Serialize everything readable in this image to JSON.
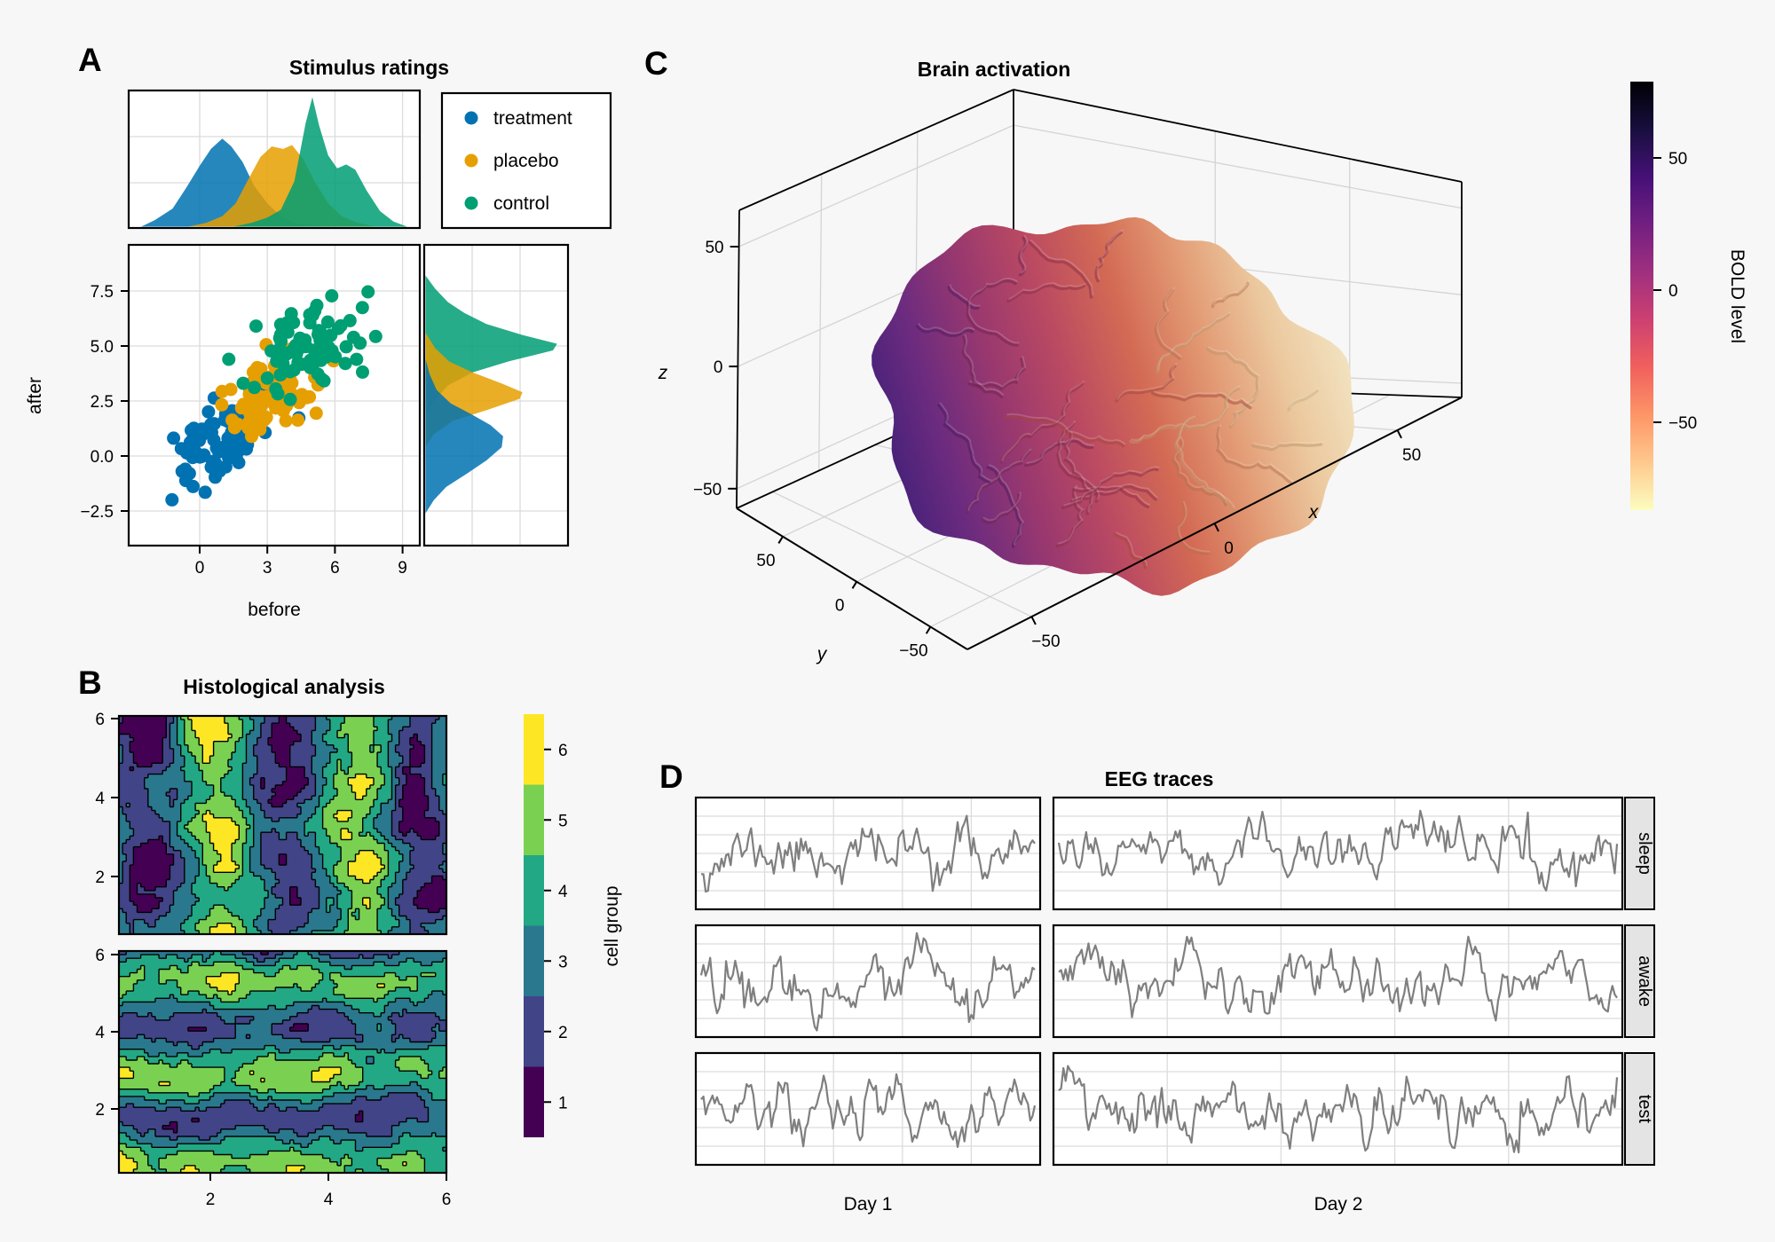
{
  "figure": {
    "background": "#F7F7F7",
    "panel_background": "#FFFFFF",
    "grid_color": "#DCDCDC",
    "wall_grid_color": "#D4D4D4",
    "border_color": "#000000"
  },
  "chart_data": [
    {
      "id": "A",
      "type": "scatter",
      "title": "Stimulus ratings",
      "xlabel": "before",
      "ylabel": "after",
      "x_ticks": [
        0,
        3,
        6,
        9
      ],
      "y_ticks": [
        7.5,
        5.0,
        2.5,
        0.0,
        -2.5
      ],
      "y_tick_labels": [
        "7.5",
        "5.0",
        "2.5",
        "0.0",
        "−2.5"
      ],
      "xlim": [
        -3.2,
        9.8
      ],
      "ylim": [
        -4.1,
        9.6
      ],
      "grid": true,
      "legend": {
        "position": "top-right box",
        "entries": [
          "treatment",
          "placebo",
          "control"
        ],
        "colors": [
          "#0072B2",
          "#E69F00",
          "#009E73"
        ]
      },
      "series": [
        {
          "name": "treatment",
          "color": "#0072B2",
          "n": 85,
          "mean": [
            1.0,
            0.7
          ],
          "sd": [
            1.05,
            0.95
          ],
          "corr": 0.35,
          "seed": 101
        },
        {
          "name": "placebo",
          "color": "#E69F00",
          "n": 85,
          "mean": [
            3.1,
            2.8
          ],
          "sd": [
            1.05,
            0.8
          ],
          "corr": 0.3,
          "seed": 202
        },
        {
          "name": "control",
          "color": "#009E73",
          "n": 85,
          "mean": [
            5.1,
            5.0
          ],
          "sd": [
            1.15,
            0.95
          ],
          "corr": 0.3,
          "seed": 303
        }
      ],
      "marginal_top": {
        "treatment": [
          [
            -2.6,
            0
          ],
          [
            -2,
            0.05
          ],
          [
            -1.2,
            0.14
          ],
          [
            -0.6,
            0.3
          ],
          [
            0,
            0.47
          ],
          [
            0.5,
            0.6
          ],
          [
            1,
            0.68
          ],
          [
            1.4,
            0.62
          ],
          [
            1.9,
            0.5
          ],
          [
            2.4,
            0.32
          ],
          [
            3,
            0.18
          ],
          [
            3.6,
            0.08
          ],
          [
            4.2,
            0.03
          ],
          [
            5,
            0.01
          ],
          [
            6,
            0
          ]
        ],
        "placebo": [
          [
            -0.5,
            0
          ],
          [
            0.3,
            0.03
          ],
          [
            1,
            0.08
          ],
          [
            1.6,
            0.18
          ],
          [
            2.2,
            0.38
          ],
          [
            2.7,
            0.54
          ],
          [
            3.2,
            0.62
          ],
          [
            3.7,
            0.6
          ],
          [
            4.1,
            0.63
          ],
          [
            4.6,
            0.52
          ],
          [
            5.1,
            0.35
          ],
          [
            5.7,
            0.18
          ],
          [
            6.3,
            0.08
          ],
          [
            7,
            0.03
          ],
          [
            7.8,
            0
          ]
        ],
        "control": [
          [
            1.5,
            0
          ],
          [
            2.3,
            0.03
          ],
          [
            3,
            0.07
          ],
          [
            3.6,
            0.13
          ],
          [
            4.2,
            0.35
          ],
          [
            4.7,
            0.8
          ],
          [
            5,
            1
          ],
          [
            5.3,
            0.78
          ],
          [
            5.7,
            0.55
          ],
          [
            6.1,
            0.45
          ],
          [
            6.5,
            0.48
          ],
          [
            6.9,
            0.44
          ],
          [
            7.4,
            0.28
          ],
          [
            8,
            0.12
          ],
          [
            8.6,
            0.04
          ],
          [
            9.2,
            0
          ]
        ]
      },
      "marginal_right": {
        "control": [
          [
            1.8,
            0
          ],
          [
            2.5,
            0.06
          ],
          [
            3.2,
            0.16
          ],
          [
            3.8,
            0.34
          ],
          [
            4.3,
            0.6
          ],
          [
            4.8,
            0.92
          ],
          [
            5.1,
            0.95
          ],
          [
            5.5,
            0.7
          ],
          [
            6,
            0.44
          ],
          [
            6.5,
            0.28
          ],
          [
            7,
            0.16
          ],
          [
            7.6,
            0.07
          ],
          [
            8.2,
            0
          ]
        ],
        "placebo": [
          [
            0.4,
            0
          ],
          [
            1,
            0.06
          ],
          [
            1.6,
            0.2
          ],
          [
            2.1,
            0.45
          ],
          [
            2.6,
            0.68
          ],
          [
            2.9,
            0.7
          ],
          [
            3.3,
            0.55
          ],
          [
            3.8,
            0.34
          ],
          [
            4.3,
            0.17
          ],
          [
            4.9,
            0.07
          ],
          [
            5.6,
            0
          ]
        ],
        "treatment": [
          [
            -2.6,
            0
          ],
          [
            -2,
            0.06
          ],
          [
            -1.4,
            0.15
          ],
          [
            -0.8,
            0.3
          ],
          [
            -0.2,
            0.44
          ],
          [
            0.4,
            0.55
          ],
          [
            0.9,
            0.56
          ],
          [
            1.4,
            0.47
          ],
          [
            1.9,
            0.33
          ],
          [
            2.4,
            0.18
          ],
          [
            3,
            0.08
          ],
          [
            3.7,
            0.03
          ],
          [
            4.4,
            0
          ]
        ]
      },
      "density_opacity": 0.85
    },
    {
      "id": "B",
      "type": "filled_contour",
      "title": "Histological analysis",
      "facets": [
        "top",
        "bottom"
      ],
      "x_ticks": [
        2,
        4,
        6
      ],
      "y_ticks": [
        6,
        4,
        2
      ],
      "levels": [
        1,
        2,
        3,
        4,
        5,
        6
      ],
      "palette": [
        "#440154",
        "#414487",
        "#2A788E",
        "#22A884",
        "#7AD151",
        "#FDE725"
      ],
      "colorbar": {
        "label": "cell group",
        "ticks": [
          1,
          2,
          3,
          4,
          5,
          6
        ]
      },
      "pattern": {
        "top": "vertical bands",
        "bottom": "horizontal bands fading to the right"
      },
      "seeds": {
        "top": 7,
        "bottom": 99
      }
    },
    {
      "id": "C",
      "type": "surface3d",
      "title": "Brain activation",
      "axis_labels": {
        "x": "x",
        "y": "y",
        "z": "z"
      },
      "x_tick_labels": [
        "−50",
        "0",
        "50"
      ],
      "y_tick_labels": [
        "50",
        "0",
        "−50"
      ],
      "z_tick_labels": [
        "50",
        "0",
        "−50"
      ],
      "colorbar": {
        "label": "BOLD level",
        "tick_labels": [
          "50",
          "0",
          "−50"
        ],
        "colormap": "magma reversed",
        "stops": [
          "#000004",
          "#180F3E",
          "#451077",
          "#721F81",
          "#9F2F7F",
          "#CD4071",
          "#F1605D",
          "#FD9567",
          "#FEC98D",
          "#FCFDBF"
        ]
      },
      "surface": "brain mesh colored by BOLD level, dark purple posterior-left to pale yellow anterior-right",
      "brain_gradient": [
        "#3E1F78",
        "#6B2B7F",
        "#99386F",
        "#BB4A62",
        "#D36A54",
        "#E29A74",
        "#ECC99F",
        "#F2E4C2"
      ],
      "gyri_palette": [
        "#2A1050",
        "#4C1A5E",
        "#71214F",
        "#8C2C45",
        "#A4453C",
        "#B5704C",
        "#BE9668",
        "#C2B07F"
      ]
    },
    {
      "id": "D",
      "type": "line_facets",
      "title": "EEG traces",
      "col_labels": [
        "Day 1",
        "Day 2"
      ],
      "row_labels": [
        "sleep",
        "awake",
        "test"
      ],
      "line_color": "#7F7F7F",
      "strip_background": "#E4E4E4",
      "signal": "EEG-like mean-reverting noise traces, no axis tick labels",
      "seeds": [
        [
          11,
          44
        ],
        [
          22,
          55
        ],
        [
          33,
          66
        ]
      ]
    }
  ]
}
